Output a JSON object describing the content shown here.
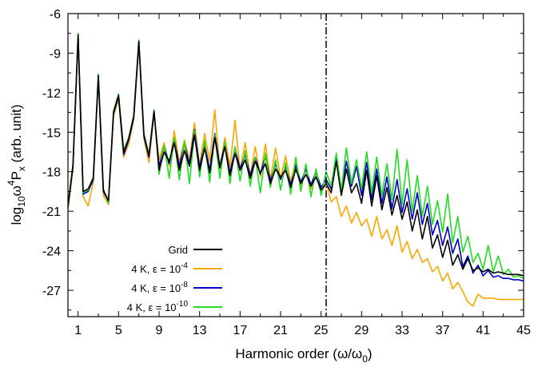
{
  "chart_data": {
    "type": "line",
    "title": "",
    "xlabel": "Harmonic order (ω/ω",
    "xlabel_sub": "0",
    "xlabel_suffix": ")",
    "ylabel_pre": "log",
    "ylabel_sub": "10",
    "ylabel_mid": "ω",
    "ylabel_sup": "4",
    "ylabel_p": "P",
    "ylabel_psub": "x",
    "ylabel_post": " (arb. unit)",
    "xlim": [
      0,
      45
    ],
    "ylim": [
      -29,
      -6
    ],
    "x_ticks": [
      1,
      5,
      9,
      13,
      17,
      21,
      25,
      29,
      33,
      37,
      41,
      45
    ],
    "x_tick_labels": [
      "1",
      "5",
      "9",
      "13",
      "17",
      "21",
      "25",
      "29",
      "33",
      "37",
      "41",
      "45"
    ],
    "y_ticks": [
      -6,
      -9,
      -12,
      -15,
      -18,
      -21,
      -24,
      -27
    ],
    "y_tick_labels": [
      "-6",
      "-9",
      "-12",
      "-15",
      "-18",
      "-21",
      "-24",
      "-27"
    ],
    "vline_x": 25.5,
    "legend_position": "bottom-left",
    "series": [
      {
        "name": "Grid",
        "legend_pre": "Grid",
        "legend_sup": "",
        "color": "#000000",
        "x": [
          0,
          0.5,
          1,
          1.5,
          2,
          2.5,
          3,
          3.5,
          4,
          4.5,
          5,
          5.5,
          6,
          6.5,
          7,
          7.5,
          8,
          8.5,
          9,
          9.5,
          10,
          10.5,
          11,
          11.5,
          12,
          12.5,
          13,
          13.5,
          14,
          14.5,
          15,
          15.5,
          16,
          16.5,
          17,
          17.5,
          18,
          18.5,
          19,
          19.5,
          20,
          20.5,
          21,
          21.5,
          22,
          22.5,
          23,
          23.5,
          24,
          24.5,
          25,
          25.5,
          26,
          26.5,
          27,
          27.5,
          28,
          28.5,
          29,
          29.5,
          30,
          30.5,
          31,
          31.5,
          32,
          32.5,
          33,
          33.5,
          34,
          34.5,
          35,
          35.5,
          36,
          36.5,
          37,
          37.5,
          38,
          38.5,
          39,
          39.5,
          40,
          40.5,
          41,
          41.5,
          42,
          42.5,
          43,
          43.5,
          44,
          44.5,
          45
        ],
        "y": [
          -20.6,
          -17.5,
          -7.6,
          -19.5,
          -19.3,
          -18.5,
          -10.7,
          -19.4,
          -20.2,
          -13.5,
          -12.2,
          -16.5,
          -15.5,
          -13.8,
          -8.1,
          -15.2,
          -16.8,
          -13.4,
          -17.9,
          -16.5,
          -17.2,
          -15.8,
          -17.9,
          -16.4,
          -17.6,
          -15.2,
          -17.9,
          -16.2,
          -18.1,
          -15.4,
          -17.7,
          -16.1,
          -18.3,
          -16.6,
          -17.9,
          -17.1,
          -18.5,
          -17.2,
          -18.1,
          -17.4,
          -18.9,
          -17.8,
          -18.4,
          -17.9,
          -19.2,
          -17.8,
          -18.9,
          -18.2,
          -19.1,
          -18.4,
          -19.4,
          -18.9,
          -19.6,
          -17.2,
          -19.8,
          -17.8,
          -19.6,
          -18.9,
          -20.4,
          -17.9,
          -20.6,
          -18.3,
          -20.9,
          -19.2,
          -21.3,
          -19.8,
          -21.6,
          -20.3,
          -22.5,
          -20.9,
          -23.1,
          -21.4,
          -23.8,
          -22.8,
          -24.5,
          -23.2,
          -25.1,
          -24.3,
          -25.4,
          -24.6,
          -25.5,
          -25.3,
          -25.6,
          -25.4,
          -25.7,
          -25.6,
          -25.7,
          -25.8,
          -25.8,
          -25.8,
          -25.9
        ]
      },
      {
        "name": "4 K, ε = 10^-4",
        "legend_pre": "4 K, ε = 10",
        "legend_sup": "-4",
        "color": "#ffa500",
        "x": [
          0,
          0.5,
          1,
          1.5,
          2,
          2.5,
          3,
          3.5,
          4,
          4.5,
          5,
          5.5,
          6,
          6.5,
          7,
          7.5,
          8,
          8.5,
          9,
          9.5,
          10,
          10.5,
          11,
          11.5,
          12,
          12.5,
          13,
          13.5,
          14,
          14.5,
          15,
          15.5,
          16,
          16.5,
          17,
          17.5,
          18,
          18.5,
          19,
          19.5,
          20,
          20.5,
          21,
          21.5,
          22,
          22.5,
          23,
          23.5,
          24,
          24.5,
          25,
          25.5,
          26,
          26.5,
          27,
          27.5,
          28,
          28.5,
          29,
          29.5,
          30,
          30.5,
          31,
          31.5,
          32,
          32.5,
          33,
          33.5,
          34,
          34.5,
          35,
          35.5,
          36,
          36.5,
          37,
          37.5,
          38,
          38.5,
          39,
          39.5,
          40,
          40.5,
          41,
          41.5,
          42,
          42.5,
          43,
          43.5,
          44,
          44.5,
          45
        ],
        "y": [
          -20.9,
          -17.8,
          -7.8,
          -19.9,
          -20.6,
          -18.8,
          -10.9,
          -19.8,
          -20.5,
          -13.8,
          -12.5,
          -16.9,
          -15.9,
          -14.1,
          -8.3,
          -15.5,
          -17.3,
          -13.6,
          -17.1,
          -15.8,
          -17.6,
          -14.9,
          -17.3,
          -15.6,
          -17.1,
          -14.3,
          -17.5,
          -15.1,
          -17.2,
          -13.3,
          -17.8,
          -15.4,
          -17.6,
          -14.1,
          -17.9,
          -15.8,
          -18.3,
          -16.1,
          -18.4,
          -15.9,
          -18.6,
          -16.2,
          -18.5,
          -16.8,
          -18.8,
          -17.1,
          -19.1,
          -17.6,
          -19.3,
          -18.1,
          -19.6,
          -18.8,
          -20.3,
          -19.9,
          -21.4,
          -20.6,
          -21.9,
          -21.1,
          -22.1,
          -21.6,
          -22.9,
          -21.4,
          -23.1,
          -22.4,
          -23.6,
          -22.1,
          -24.1,
          -23.3,
          -24.6,
          -23.9,
          -24.9,
          -24.6,
          -25.6,
          -25.2,
          -26.3,
          -25.7,
          -26.9,
          -26.4,
          -27.1,
          -27.9,
          -28.2,
          -27.3,
          -27.6,
          -27.6,
          -27.6,
          -27.7,
          -27.7,
          -27.7,
          -27.7,
          -27.7,
          -27.7
        ]
      },
      {
        "name": "4 K, ε = 10^-8",
        "legend_pre": "4 K, ε = 10",
        "legend_sup": "-8",
        "color": "#0000cc",
        "x": [
          0,
          0.5,
          1,
          1.5,
          2,
          2.5,
          3,
          3.5,
          4,
          4.5,
          5,
          5.5,
          6,
          6.5,
          7,
          7.5,
          8,
          8.5,
          9,
          9.5,
          10,
          10.5,
          11,
          11.5,
          12,
          12.5,
          13,
          13.5,
          14,
          14.5,
          15,
          15.5,
          16,
          16.5,
          17,
          17.5,
          18,
          18.5,
          19,
          19.5,
          20,
          20.5,
          21,
          21.5,
          22,
          22.5,
          23,
          23.5,
          24,
          24.5,
          25,
          25.5,
          26,
          26.5,
          27,
          27.5,
          28,
          28.5,
          29,
          29.5,
          30,
          30.5,
          31,
          31.5,
          32,
          32.5,
          33,
          33.5,
          34,
          34.5,
          35,
          35.5,
          36,
          36.5,
          37,
          37.5,
          38,
          38.5,
          39,
          39.5,
          40,
          40.5,
          41,
          41.5,
          42,
          42.5,
          43,
          43.5,
          44,
          44.5,
          45
        ],
        "y": [
          -20.7,
          -17.6,
          -7.7,
          -19.7,
          -19.5,
          -18.6,
          -10.8,
          -19.5,
          -20.3,
          -13.6,
          -12.3,
          -16.7,
          -15.6,
          -13.9,
          -8.2,
          -15.3,
          -16.9,
          -13.5,
          -17.6,
          -16.1,
          -17.4,
          -15.5,
          -17.6,
          -15.9,
          -17.4,
          -14.8,
          -17.7,
          -15.8,
          -17.9,
          -15.1,
          -17.6,
          -15.9,
          -18.1,
          -16.2,
          -17.8,
          -16.7,
          -18.3,
          -16.9,
          -18.2,
          -16.8,
          -18.7,
          -17.4,
          -18.6,
          -17.6,
          -19.0,
          -17.5,
          -18.8,
          -17.8,
          -19.0,
          -18.0,
          -19.2,
          -18.6,
          -19.3,
          -17.0,
          -19.5,
          -17.2,
          -19.1,
          -17.6,
          -19.8,
          -17.3,
          -20.1,
          -17.8,
          -20.4,
          -18.4,
          -20.8,
          -18.6,
          -21.1,
          -19.3,
          -21.6,
          -19.6,
          -22.0,
          -20.4,
          -22.8,
          -21.7,
          -23.6,
          -22.2,
          -24.2,
          -23.1,
          -25.2,
          -24.4,
          -25.7,
          -25.1,
          -25.9,
          -25.5,
          -26.0,
          -25.9,
          -26.1,
          -26.1,
          -26.2,
          -26.2,
          -26.3
        ]
      },
      {
        "name": "4 K, ε = 10^-10",
        "legend_pre": "4 K, ε = 10",
        "legend_sup": "-10",
        "color": "#22dd22",
        "x": [
          0,
          0.5,
          1,
          1.5,
          2,
          2.5,
          3,
          3.5,
          4,
          4.5,
          5,
          5.5,
          6,
          6.5,
          7,
          7.5,
          8,
          8.5,
          9,
          9.5,
          10,
          10.5,
          11,
          11.5,
          12,
          12.5,
          13,
          13.5,
          14,
          14.5,
          15,
          15.5,
          16,
          16.5,
          17,
          17.5,
          18,
          18.5,
          19,
          19.5,
          20,
          20.5,
          21,
          21.5,
          22,
          22.5,
          23,
          23.5,
          24,
          24.5,
          25,
          25.5,
          26,
          26.5,
          27,
          27.5,
          28,
          28.5,
          29,
          29.5,
          30,
          30.5,
          31,
          31.5,
          32,
          32.5,
          33,
          33.5,
          34,
          34.5,
          35,
          35.5,
          36,
          36.5,
          37,
          37.5,
          38,
          38.5,
          39,
          39.5,
          40,
          40.5,
          41,
          41.5,
          42,
          42.5,
          43,
          43.5,
          44,
          44.5,
          45
        ],
        "y": [
          -20.6,
          -17.4,
          -7.5,
          -19.6,
          -19.4,
          -18.4,
          -10.6,
          -19.3,
          -20.4,
          -13.4,
          -12.1,
          -16.4,
          -15.4,
          -13.7,
          -8.0,
          -15.1,
          -16.7,
          -13.3,
          -18.2,
          -16.0,
          -18.5,
          -15.4,
          -18.6,
          -15.7,
          -18.9,
          -14.9,
          -18.4,
          -15.6,
          -18.8,
          -15.2,
          -18.5,
          -15.7,
          -18.9,
          -16.1,
          -18.7,
          -16.4,
          -19.1,
          -16.9,
          -19.6,
          -16.6,
          -19.2,
          -17.1,
          -19.4,
          -17.3,
          -19.7,
          -16.9,
          -19.5,
          -17.4,
          -19.9,
          -17.8,
          -19.8,
          -18.0,
          -19.1,
          -16.6,
          -19.4,
          -16.2,
          -18.9,
          -17.1,
          -19.3,
          -16.5,
          -19.6,
          -16.9,
          -19.8,
          -17.4,
          -20.1,
          -16.3,
          -20.5,
          -17.1,
          -21.0,
          -18.3,
          -21.4,
          -19.1,
          -22.0,
          -20.2,
          -22.6,
          -19.7,
          -23.4,
          -21.4,
          -24.1,
          -22.9,
          -24.9,
          -24.2,
          -25.4,
          -23.6,
          -25.6,
          -24.4,
          -25.8,
          -25.4,
          -26.0,
          -25.9,
          -26.1
        ]
      }
    ]
  }
}
